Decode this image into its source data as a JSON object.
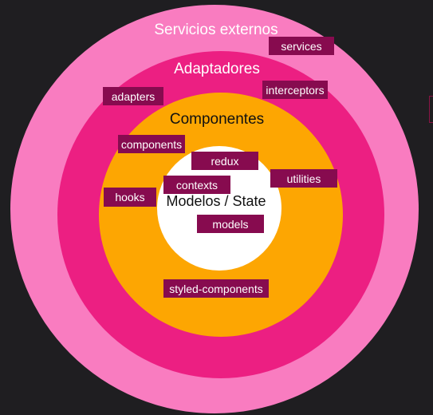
{
  "colors": {
    "background": "#1f1e21",
    "outer_ring": "#f97cc0",
    "middle_ring": "#ec1f82",
    "inner_ring": "#fda602",
    "core": "#ffffff",
    "tag_fill": "#870b4f",
    "ring_text_light": "#ffffff",
    "ring_text_dark": "#111111"
  },
  "rings": {
    "outer": {
      "label": "Servicios externos"
    },
    "middle": {
      "label": "Adaptadores"
    },
    "inner": {
      "label": "Componentes"
    },
    "core": {
      "label": "Modelos / State"
    }
  },
  "tags": {
    "services": "services",
    "adapters": "adapters",
    "interceptors": "interceptors",
    "components": "components",
    "redux": "redux",
    "contexts": "contexts",
    "utilities": "utilities",
    "hooks": "hooks",
    "models": "models",
    "styled_components": "styled-components"
  }
}
